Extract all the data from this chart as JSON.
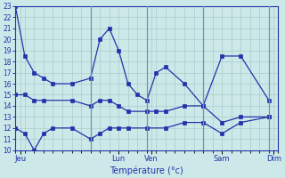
{
  "xlabel": "Température (°c)",
  "background_color": "#cce8e8",
  "grid_color": "#aacccc",
  "line_color": "#2233aa",
  "ylim": [
    10,
    23
  ],
  "yticks": [
    10,
    11,
    12,
    13,
    14,
    15,
    16,
    17,
    18,
    19,
    20,
    21,
    22,
    23
  ],
  "xlim": [
    0,
    28
  ],
  "day_ticks": [
    0.5,
    11,
    14.5,
    22,
    27.5
  ],
  "day_labels": [
    "Jeu",
    "Lun",
    "Ven",
    "Sam",
    "Dim"
  ],
  "vline_positions": [
    8,
    14,
    20,
    27
  ],
  "line1": {
    "x": [
      0,
      1,
      2,
      3,
      4,
      6,
      8,
      9,
      10,
      11,
      12,
      13,
      14,
      15,
      16,
      18,
      20,
      22,
      24,
      27
    ],
    "y": [
      23,
      18.5,
      17,
      16.5,
      16,
      16,
      16.5,
      20,
      21,
      19,
      16,
      15,
      14.5,
      17,
      17.5,
      16,
      14,
      18.5,
      18.5,
      14.5
    ]
  },
  "line2": {
    "x": [
      0,
      1,
      2,
      3,
      6,
      8,
      9,
      10,
      11,
      12,
      14,
      15,
      16,
      18,
      20,
      22,
      24,
      27
    ],
    "y": [
      15,
      15,
      14.5,
      14.5,
      14.5,
      14,
      14.5,
      14.5,
      14,
      13.5,
      13.5,
      13.5,
      13.5,
      14,
      14,
      12.5,
      13,
      13
    ]
  },
  "line3": {
    "x": [
      0,
      1,
      2,
      3,
      4,
      6,
      8,
      9,
      10,
      11,
      12,
      14,
      16,
      18,
      20,
      22,
      24,
      27
    ],
    "y": [
      12,
      11.5,
      10,
      11.5,
      12,
      12,
      11,
      11.5,
      12,
      12,
      12,
      12,
      12,
      12.5,
      12.5,
      11.5,
      12.5,
      13
    ]
  }
}
